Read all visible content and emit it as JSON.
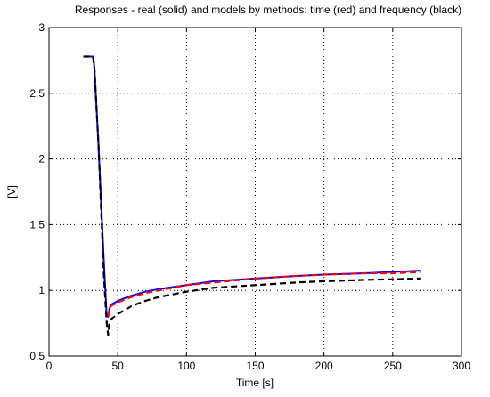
{
  "chart_data": {
    "type": "line",
    "title": "Responses - real (solid) and models by methods: time (red) and frequency (black)",
    "xlabel": "Time [s]",
    "ylabel": "[V]",
    "xlim": [
      0,
      300
    ],
    "ylim": [
      0.5,
      3
    ],
    "xticks": [
      0,
      50,
      100,
      150,
      200,
      250,
      300
    ],
    "yticks": [
      0.5,
      1,
      1.5,
      2,
      2.5,
      3
    ],
    "xtick_labels": [
      "0",
      "50",
      "100",
      "150",
      "200",
      "250",
      "300"
    ],
    "ytick_labels": [
      "0.5",
      "1",
      "1.5",
      "2",
      "2.5",
      "3"
    ],
    "grid": true,
    "grid_style": "dotted",
    "series": [
      {
        "color": "#0000ff",
        "style": "solid",
        "x": [
          25,
          32,
          33,
          36,
          38,
          40,
          42,
          43,
          44,
          45,
          50,
          60,
          70,
          80,
          100,
          120,
          150,
          180,
          200,
          230,
          250,
          270
        ],
        "y": [
          2.78,
          2.78,
          2.7,
          2.1,
          1.65,
          1.2,
          0.8,
          0.8,
          0.86,
          0.89,
          0.92,
          0.96,
          0.99,
          1.01,
          1.04,
          1.07,
          1.09,
          1.11,
          1.12,
          1.13,
          1.14,
          1.15
        ]
      },
      {
        "color": "#ff0000",
        "style": "dashed",
        "x": [
          43,
          44,
          45,
          50,
          60,
          70,
          80,
          100,
          120,
          150,
          180,
          200,
          230,
          250,
          270
        ],
        "y": [
          0.8,
          0.85,
          0.88,
          0.91,
          0.95,
          0.98,
          1.0,
          1.04,
          1.06,
          1.09,
          1.11,
          1.12,
          1.13,
          1.13,
          1.14
        ]
      },
      {
        "color": "#000000",
        "style": "dashed",
        "x": [
          25,
          32,
          33,
          36,
          38,
          40,
          42,
          43,
          44,
          45,
          50,
          60,
          70,
          80,
          100,
          120,
          150,
          180,
          200,
          230,
          250,
          270
        ],
        "y": [
          2.78,
          2.78,
          2.7,
          2.1,
          1.6,
          1.1,
          0.75,
          0.66,
          0.75,
          0.78,
          0.82,
          0.88,
          0.92,
          0.95,
          0.99,
          1.02,
          1.04,
          1.06,
          1.07,
          1.08,
          1.085,
          1.09
        ]
      }
    ]
  }
}
